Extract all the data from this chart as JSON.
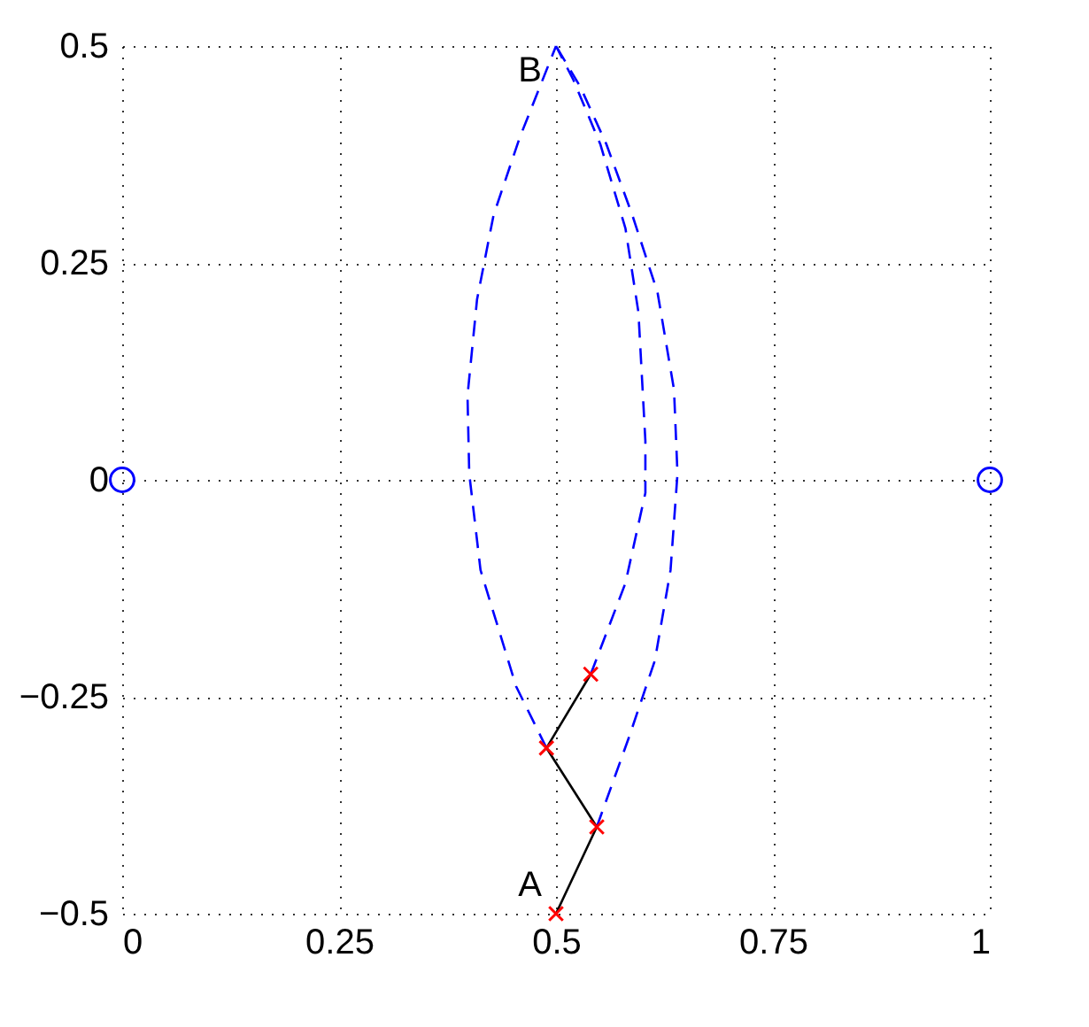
{
  "chart_data": {
    "type": "line",
    "xlim": [
      0,
      1
    ],
    "ylim": [
      -0.5,
      0.5
    ],
    "xticks": [
      0,
      0.25,
      0.5,
      0.75,
      1
    ],
    "yticks": [
      -0.5,
      -0.25,
      0,
      0.25,
      0.5
    ],
    "grid": true,
    "series": [
      {
        "line_style": "dashed",
        "color": "#0000ff",
        "x": [
          0.489,
          0.454,
          0.413,
          0.4,
          0.398,
          0.409,
          0.428,
          0.458,
          0.5
        ],
        "values": [
          -0.309,
          -0.238,
          -0.104,
          0.007,
          0.097,
          0.208,
          0.305,
          0.394,
          0.5
        ]
      },
      {
        "line_style": "dashed",
        "color": "#0000ff",
        "x": [
          0.54,
          0.58,
          0.603,
          0.603,
          0.595,
          0.58,
          0.551,
          0.52,
          0.5
        ],
        "values": [
          -0.224,
          -0.119,
          -0.015,
          0.045,
          0.193,
          0.29,
          0.387,
          0.461,
          0.5
        ]
      },
      {
        "line_style": "dashed",
        "color": "#0000ff",
        "x": [
          0.547,
          0.584,
          0.614,
          0.632,
          0.64,
          0.636,
          0.617,
          0.588,
          0.558,
          0.528,
          0.5
        ],
        "values": [
          -0.4,
          -0.297,
          -0.208,
          -0.104,
          0.007,
          0.104,
          0.216,
          0.305,
          0.387,
          0.453,
          0.5
        ]
      },
      {
        "line_style": "solid",
        "color": "#000000",
        "x": [
          0.5,
          0.547,
          0.489,
          0.54
        ],
        "values": [
          -0.5,
          -0.4,
          -0.309,
          -0.224
        ]
      },
      {
        "type": "scatter",
        "marker": "cross",
        "color": "#ff0000",
        "x": [
          0.5,
          0.547,
          0.489,
          0.54
        ],
        "values": [
          -0.5,
          -0.4,
          -0.309,
          -0.224
        ]
      },
      {
        "type": "scatter",
        "marker": "circle",
        "color": "#0000ff",
        "x": [
          0,
          1
        ],
        "values": [
          0,
          0
        ]
      }
    ],
    "annotations": [
      {
        "text": "A",
        "x": 0.5,
        "y": -0.5
      },
      {
        "text": "B",
        "x": 0.5,
        "y": 0.5
      }
    ]
  }
}
